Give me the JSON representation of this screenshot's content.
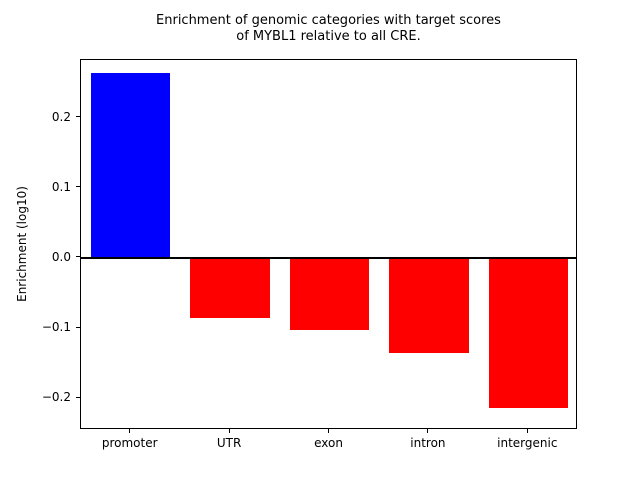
{
  "chart_data": {
    "type": "bar",
    "title": "Enrichment of genomic categories with target scores of MYBL1 relative to all CRE.",
    "title_line1": "Enrichment of genomic categories with target scores",
    "title_line2": "of MYBL1 relative to all CRE.",
    "ylabel": "Enrichment (log10)",
    "xlabel": "",
    "categories": [
      "promoter",
      "UTR",
      "exon",
      "intron",
      "intergenic"
    ],
    "values": [
      0.263,
      -0.086,
      -0.103,
      -0.136,
      -0.214
    ],
    "bar_colors": [
      "#0000ff",
      "#ff0000",
      "#ff0000",
      "#ff0000",
      "#ff0000"
    ],
    "yticks": [
      {
        "value": 0.2,
        "label": "0.2"
      },
      {
        "value": 0.1,
        "label": "0.1"
      },
      {
        "value": 0.0,
        "label": "0.0"
      },
      {
        "value": -0.1,
        "label": "−0.1"
      },
      {
        "value": -0.2,
        "label": "−0.2"
      }
    ],
    "ylim": [
      -0.245,
      0.282
    ],
    "zero_line": true,
    "grid": false,
    "legend": false,
    "axis_color": "#000000",
    "background": "#ffffff"
  }
}
